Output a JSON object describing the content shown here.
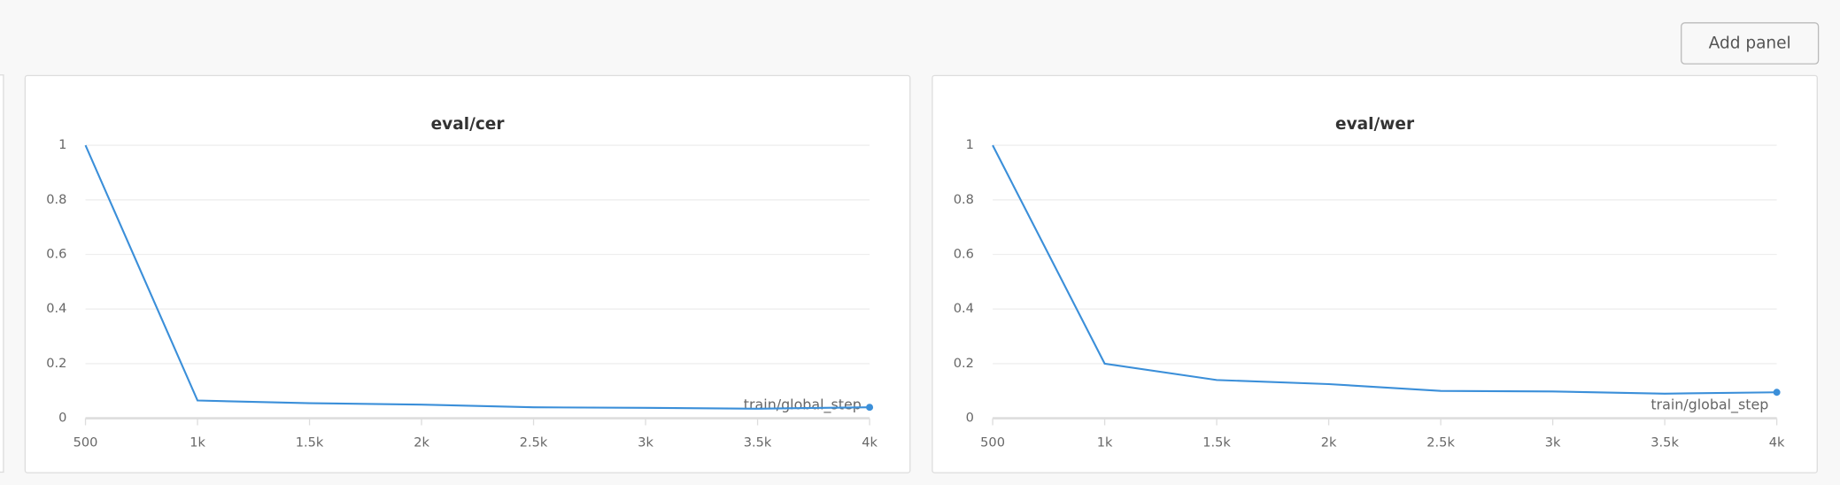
{
  "toolbar": {
    "button": "Add panel"
  },
  "chart_data": [
    {
      "type": "line",
      "title": "eval/cer",
      "x_label": "train/global_step",
      "x": [
        500,
        1000,
        1500,
        2000,
        2500,
        3000,
        3500,
        4000
      ],
      "values": [
        1,
        0.065,
        0.055,
        0.05,
        0.04,
        0.038,
        0.035,
        0.04
      ],
      "color": "#3b8fd9",
      "xlim": [
        500,
        4000
      ],
      "xticks": [
        500,
        {
          "value": 1000,
          "label": "1k"
        },
        {
          "value": 1500,
          "label": "1.5k"
        },
        {
          "value": 2000,
          "label": "2k"
        },
        {
          "value": 2500,
          "label": "2.5k"
        },
        {
          "value": 3000,
          "label": "3k"
        },
        {
          "value": 3500,
          "label": "3.5k"
        },
        {
          "value": 4000,
          "label": "4k"
        }
      ],
      "ylim": [
        0,
        1
      ],
      "yticks": [
        0,
        0.2,
        0.4,
        0.6,
        0.8,
        1
      ],
      "grid": true
    },
    {
      "type": "line",
      "title": "eval/wer",
      "x_label": "train/global_step",
      "x": [
        500,
        1000,
        1500,
        2000,
        2500,
        3000,
        3500,
        4000
      ],
      "values": [
        1,
        0.2,
        0.14,
        0.125,
        0.1,
        0.098,
        0.09,
        0.095
      ],
      "color": "#3b8fd9",
      "xlim": [
        500,
        4000
      ],
      "xticks": [
        500,
        {
          "value": 1000,
          "label": "1k"
        },
        {
          "value": 1500,
          "label": "1.5k"
        },
        {
          "value": 2000,
          "label": "2k"
        },
        {
          "value": 2500,
          "label": "2.5k"
        },
        {
          "value": 3000,
          "label": "3k"
        },
        {
          "value": 3500,
          "label": "3.5k"
        },
        {
          "value": 4000,
          "label": "4k"
        }
      ],
      "ylim": [
        0,
        1
      ],
      "yticks": [
        0,
        0.2,
        0.4,
        0.6,
        0.8,
        1
      ],
      "grid": true
    }
  ]
}
